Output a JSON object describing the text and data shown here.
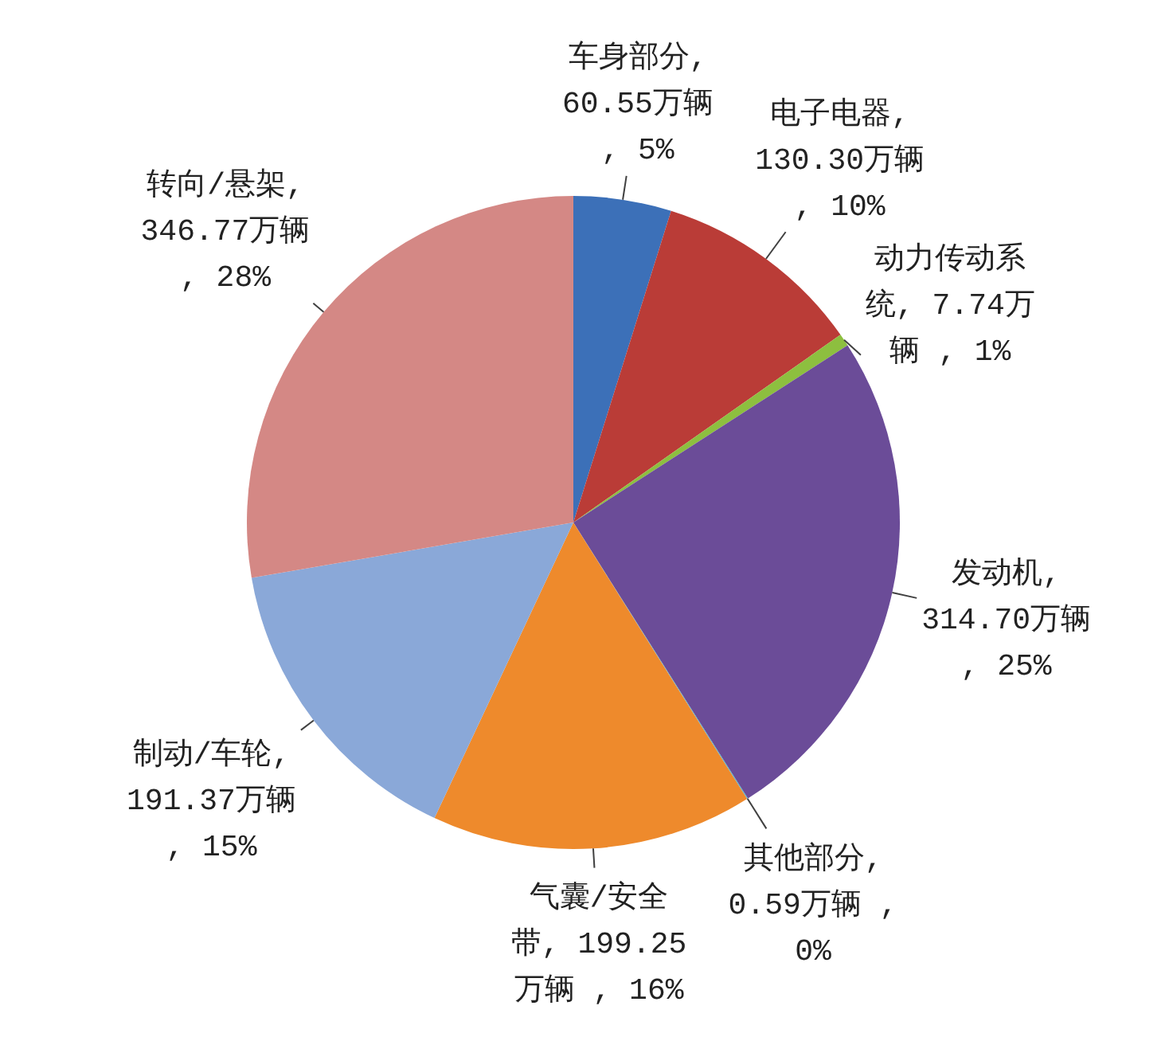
{
  "chart_data": {
    "type": "pie",
    "categories": [
      "车身部分",
      "电子电器",
      "动力传动系统",
      "发动机",
      "其他部分",
      "气囊/安全带",
      "制动/车轮",
      "转向/悬架"
    ],
    "values": [
      60.55,
      130.3,
      7.74,
      314.7,
      0.59,
      199.25,
      191.37,
      346.77
    ],
    "colors": [
      "#3c70b8",
      "#ba3c37",
      "#8dbf3f",
      "#6b4c98",
      "#4bacc6",
      "#ee8a2c",
      "#8aa8d8",
      "#d48885"
    ],
    "value_labels": [
      ", 60.55万辆 , 5%",
      ", 130.30万辆 , 10%",
      ", 7.74万辆 , 1%",
      ", 314.70万辆 , 25%",
      ", 0.59万辆 , 0%",
      ", 199.25万辆 , 16%",
      ", 191.37万辆 , 15%",
      ", 346.77万辆 , 28%"
    ]
  }
}
